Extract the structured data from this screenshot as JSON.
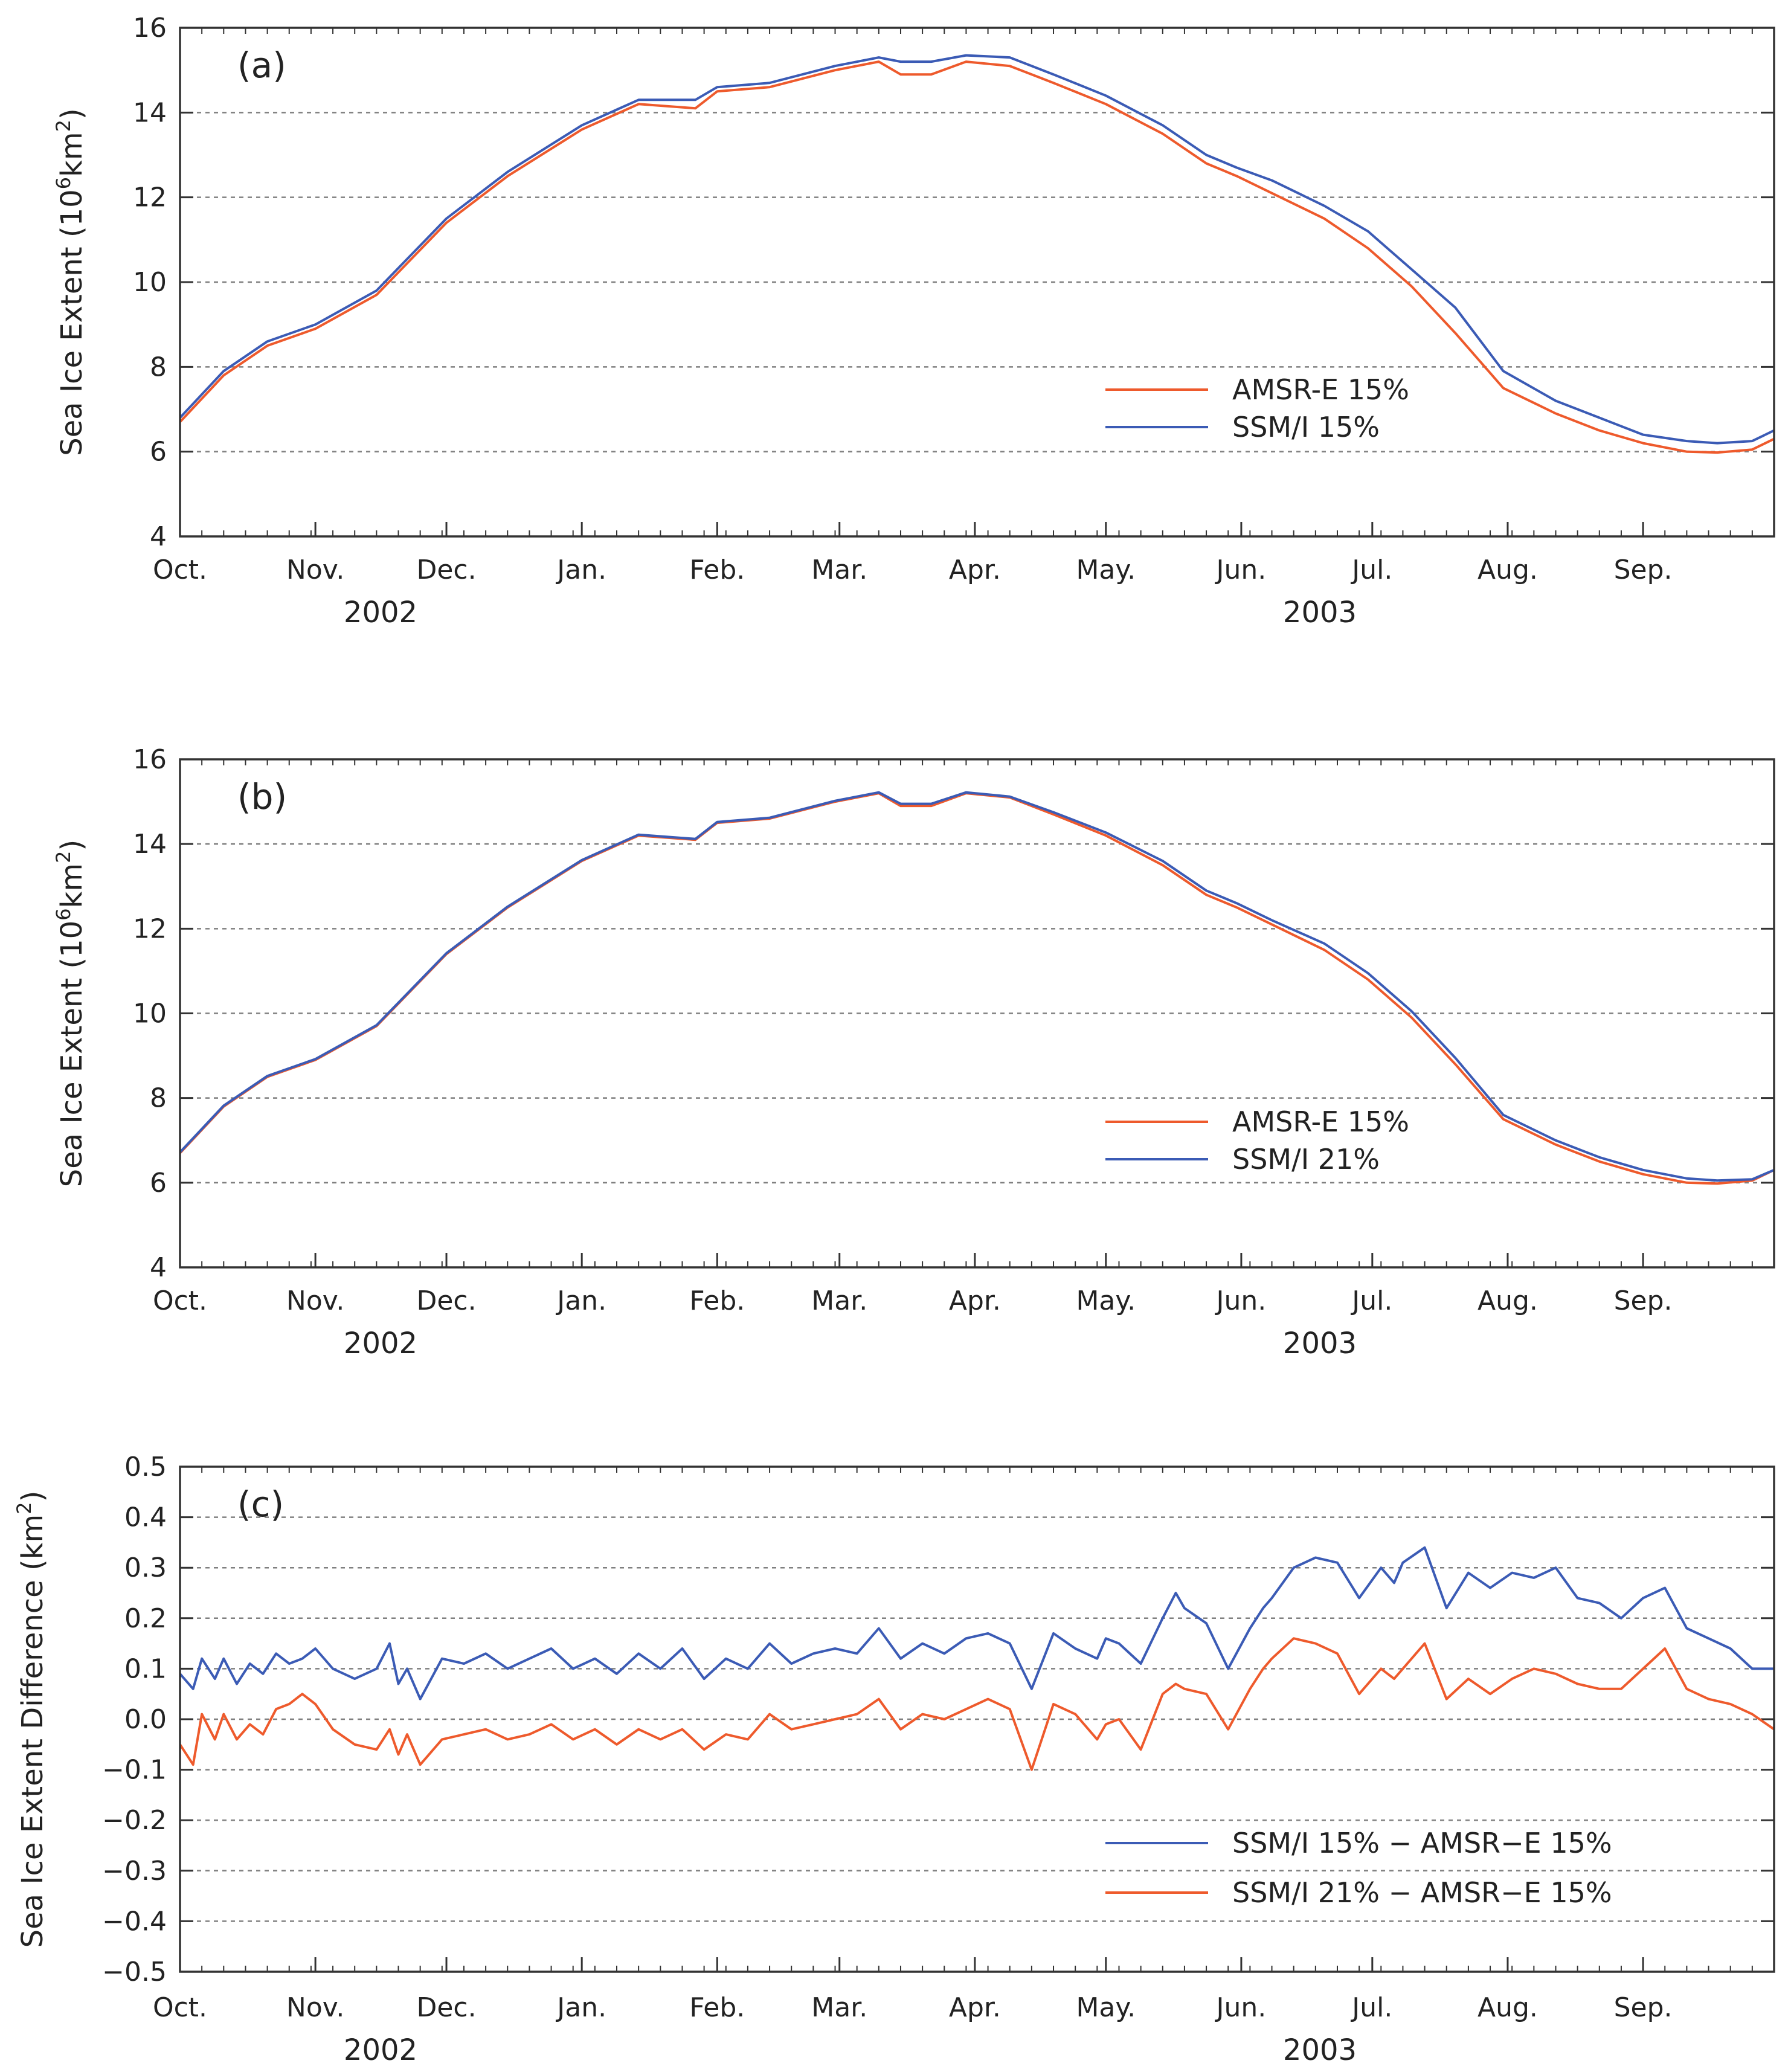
{
  "figure": {
    "colors": {
      "amsr": "#ee5a2c",
      "ssmi": "#3b5bb5",
      "grid": "#808080",
      "axis": "#333333"
    }
  },
  "chart_data": [
    {
      "id": "a",
      "type": "line",
      "panel_label": "(a)",
      "ylabel": "Sea Ice Extent (10",
      "ylabel_sup": "6",
      "ylabel_unit": "km",
      "ylabel_sup2": "2",
      "ylabel_close": ")",
      "ylim": [
        4,
        16
      ],
      "yticks": [
        "4",
        "6",
        "8",
        "10",
        "12",
        "14",
        "16"
      ],
      "xlim": [
        0,
        365
      ],
      "months": [
        "Oct.",
        "Nov.",
        "Dec.",
        "Jan.",
        "Feb.",
        "Mar.",
        "Apr.",
        "May.",
        "Jun.",
        "Jul.",
        "Aug.",
        "Sep."
      ],
      "years": [
        "2002",
        "2003"
      ],
      "grid": "horizontal-dashed",
      "legend_position": "right-lower",
      "series": [
        {
          "name": "AMSR-E 15%",
          "color": "#ee5a2c",
          "x": [
            0,
            10,
            20,
            31,
            45,
            61,
            75,
            92,
            105,
            118,
            123,
            135,
            150,
            160,
            165,
            172,
            180,
            190,
            200,
            212,
            225,
            235,
            242,
            250,
            262,
            272,
            282,
            292,
            303,
            315,
            325,
            335,
            345,
            352,
            360,
            365
          ],
          "y": [
            6.7,
            7.8,
            8.5,
            8.9,
            9.7,
            11.4,
            12.5,
            13.6,
            14.2,
            14.1,
            14.5,
            14.6,
            15.0,
            15.2,
            14.9,
            14.9,
            15.2,
            15.1,
            14.7,
            14.2,
            13.5,
            12.8,
            12.5,
            12.1,
            11.5,
            10.8,
            9.9,
            8.8,
            7.5,
            6.9,
            6.5,
            6.2,
            6.0,
            5.98,
            6.05,
            6.3
          ]
        },
        {
          "name": "SSM/I 15%",
          "color": "#3b5bb5",
          "x": [
            0,
            10,
            20,
            31,
            45,
            61,
            75,
            92,
            105,
            118,
            123,
            135,
            150,
            160,
            165,
            172,
            180,
            190,
            200,
            212,
            225,
            235,
            242,
            250,
            262,
            272,
            282,
            292,
            303,
            315,
            325,
            335,
            345,
            352,
            360,
            365
          ],
          "y": [
            6.8,
            7.9,
            8.6,
            9.0,
            9.8,
            11.5,
            12.6,
            13.7,
            14.3,
            14.3,
            14.6,
            14.7,
            15.1,
            15.3,
            15.2,
            15.2,
            15.35,
            15.3,
            14.9,
            14.4,
            13.7,
            13.0,
            12.7,
            12.4,
            11.8,
            11.2,
            10.3,
            9.4,
            7.9,
            7.2,
            6.8,
            6.4,
            6.25,
            6.2,
            6.25,
            6.5
          ]
        }
      ]
    },
    {
      "id": "b",
      "type": "line",
      "panel_label": "(b)",
      "ylabel": "Sea Ice Extent (10",
      "ylabel_sup": "6",
      "ylabel_unit": "km",
      "ylabel_sup2": "2",
      "ylabel_close": ")",
      "ylim": [
        4,
        16
      ],
      "yticks": [
        "4",
        "6",
        "8",
        "10",
        "12",
        "14",
        "16"
      ],
      "xlim": [
        0,
        365
      ],
      "months": [
        "Oct.",
        "Nov.",
        "Dec.",
        "Jan.",
        "Feb.",
        "Mar.",
        "Apr.",
        "May.",
        "Jun.",
        "Jul.",
        "Aug.",
        "Sep."
      ],
      "years": [
        "2002",
        "2003"
      ],
      "grid": "horizontal-dashed",
      "legend_position": "right-lower",
      "series": [
        {
          "name": "AMSR-E 15%",
          "color": "#ee5a2c",
          "x": [
            0,
            10,
            20,
            31,
            45,
            61,
            75,
            92,
            105,
            118,
            123,
            135,
            150,
            160,
            165,
            172,
            180,
            190,
            200,
            212,
            225,
            235,
            242,
            250,
            262,
            272,
            282,
            292,
            303,
            315,
            325,
            335,
            345,
            352,
            360,
            365
          ],
          "y": [
            6.7,
            7.8,
            8.5,
            8.9,
            9.7,
            11.4,
            12.5,
            13.6,
            14.2,
            14.1,
            14.5,
            14.6,
            15.0,
            15.2,
            14.9,
            14.9,
            15.2,
            15.1,
            14.7,
            14.2,
            13.5,
            12.8,
            12.5,
            12.1,
            11.5,
            10.8,
            9.9,
            8.8,
            7.5,
            6.9,
            6.5,
            6.2,
            6.0,
            5.98,
            6.05,
            6.3
          ]
        },
        {
          "name": "SSM/I 21%",
          "color": "#3b5bb5",
          "x": [
            0,
            10,
            20,
            31,
            45,
            61,
            75,
            92,
            105,
            118,
            123,
            135,
            150,
            160,
            165,
            172,
            180,
            190,
            200,
            212,
            225,
            235,
            242,
            250,
            262,
            272,
            282,
            292,
            303,
            315,
            325,
            335,
            345,
            352,
            360,
            365
          ],
          "y": [
            6.72,
            7.82,
            8.52,
            8.92,
            9.72,
            11.42,
            12.52,
            13.62,
            14.22,
            14.12,
            14.52,
            14.62,
            15.02,
            15.22,
            14.95,
            14.95,
            15.22,
            15.12,
            14.75,
            14.27,
            13.6,
            12.9,
            12.6,
            12.2,
            11.65,
            10.95,
            10.05,
            8.95,
            7.6,
            7.0,
            6.6,
            6.3,
            6.1,
            6.05,
            6.08,
            6.3
          ]
        }
      ]
    },
    {
      "id": "c",
      "type": "line",
      "panel_label": "(c)",
      "ylabel": "Sea Ice Extent Difference (km",
      "ylabel_sup": "2",
      "ylabel_close": ")",
      "ylim": [
        -0.5,
        0.5
      ],
      "yticks": [
        "-0.5",
        "-0.4",
        "-0.3",
        "-0.2",
        "-0.1",
        "0.0",
        "0.1",
        "0.2",
        "0.3",
        "0.4",
        "0.5"
      ],
      "yticks_display": [
        "−0.5",
        "−0.4",
        "−0.3",
        "−0.2",
        "−0.1",
        "0.0",
        "0.1",
        "0.2",
        "0.3",
        "0.4",
        "0.5"
      ],
      "xlim": [
        0,
        365
      ],
      "months": [
        "Oct.",
        "Nov.",
        "Dec.",
        "Jan.",
        "Feb.",
        "Mar.",
        "Apr.",
        "May.",
        "Jun.",
        "Jul.",
        "Aug.",
        "Sep."
      ],
      "years": [
        "2002",
        "2003"
      ],
      "grid": "horizontal-dashed",
      "legend_position": "right-lower",
      "series": [
        {
          "name": "SSM/I 15% − AMSR−E 15%",
          "color": "#3b5bb5",
          "x": [
            0,
            3,
            5,
            8,
            10,
            13,
            16,
            19,
            22,
            25,
            28,
            31,
            35,
            40,
            45,
            48,
            50,
            52,
            55,
            60,
            65,
            70,
            75,
            80,
            85,
            90,
            95,
            100,
            105,
            110,
            115,
            120,
            125,
            130,
            135,
            140,
            145,
            150,
            155,
            160,
            165,
            170,
            175,
            180,
            185,
            190,
            195,
            200,
            205,
            210,
            212,
            215,
            220,
            225,
            228,
            230,
            235,
            240,
            245,
            248,
            250,
            255,
            260,
            265,
            270,
            275,
            278,
            280,
            285,
            290,
            295,
            300,
            305,
            310,
            315,
            320,
            325,
            330,
            335,
            340,
            345,
            350,
            355,
            360,
            365
          ],
          "y": [
            0.09,
            0.06,
            0.12,
            0.08,
            0.12,
            0.07,
            0.11,
            0.09,
            0.13,
            0.11,
            0.12,
            0.14,
            0.1,
            0.08,
            0.1,
            0.15,
            0.07,
            0.1,
            0.04,
            0.12,
            0.11,
            0.13,
            0.1,
            0.12,
            0.14,
            0.1,
            0.12,
            0.09,
            0.13,
            0.1,
            0.14,
            0.08,
            0.12,
            0.1,
            0.15,
            0.11,
            0.13,
            0.14,
            0.13,
            0.18,
            0.12,
            0.15,
            0.13,
            0.16,
            0.17,
            0.15,
            0.06,
            0.17,
            0.14,
            0.12,
            0.16,
            0.15,
            0.11,
            0.2,
            0.25,
            0.22,
            0.19,
            0.1,
            0.18,
            0.22,
            0.24,
            0.3,
            0.32,
            0.31,
            0.24,
            0.3,
            0.27,
            0.31,
            0.34,
            0.22,
            0.29,
            0.26,
            0.29,
            0.28,
            0.3,
            0.24,
            0.23,
            0.2,
            0.24,
            0.26,
            0.18,
            0.16,
            0.14,
            0.1,
            0.1
          ]
        },
        {
          "name": "SSM/I 21% − AMSR−E 15%",
          "color": "#ee5a2c",
          "x": [
            0,
            3,
            5,
            8,
            10,
            13,
            16,
            19,
            22,
            25,
            28,
            31,
            35,
            40,
            45,
            48,
            50,
            52,
            55,
            60,
            65,
            70,
            75,
            80,
            85,
            90,
            95,
            100,
            105,
            110,
            115,
            120,
            125,
            130,
            135,
            140,
            145,
            150,
            155,
            160,
            165,
            170,
            175,
            180,
            185,
            190,
            195,
            200,
            205,
            210,
            212,
            215,
            220,
            225,
            228,
            230,
            235,
            240,
            245,
            248,
            250,
            255,
            260,
            265,
            270,
            275,
            278,
            280,
            285,
            290,
            295,
            300,
            305,
            310,
            315,
            320,
            325,
            330,
            335,
            340,
            345,
            350,
            355,
            360,
            365
          ],
          "y": [
            -0.05,
            -0.09,
            0.01,
            -0.04,
            0.01,
            -0.04,
            -0.01,
            -0.03,
            0.02,
            0.03,
            0.05,
            0.03,
            -0.02,
            -0.05,
            -0.06,
            -0.02,
            -0.07,
            -0.03,
            -0.09,
            -0.04,
            -0.03,
            -0.02,
            -0.04,
            -0.03,
            -0.01,
            -0.04,
            -0.02,
            -0.05,
            -0.02,
            -0.04,
            -0.02,
            -0.06,
            -0.03,
            -0.04,
            0.01,
            -0.02,
            -0.01,
            0.0,
            0.01,
            0.04,
            -0.02,
            0.01,
            0.0,
            0.02,
            0.04,
            0.02,
            -0.1,
            0.03,
            0.01,
            -0.04,
            -0.01,
            0.0,
            -0.06,
            0.05,
            0.07,
            0.06,
            0.05,
            -0.02,
            0.06,
            0.1,
            0.12,
            0.16,
            0.15,
            0.13,
            0.05,
            0.1,
            0.08,
            0.1,
            0.15,
            0.04,
            0.08,
            0.05,
            0.08,
            0.1,
            0.09,
            0.07,
            0.06,
            0.06,
            0.1,
            0.14,
            0.06,
            0.04,
            0.03,
            0.01,
            -0.02
          ]
        }
      ]
    }
  ]
}
